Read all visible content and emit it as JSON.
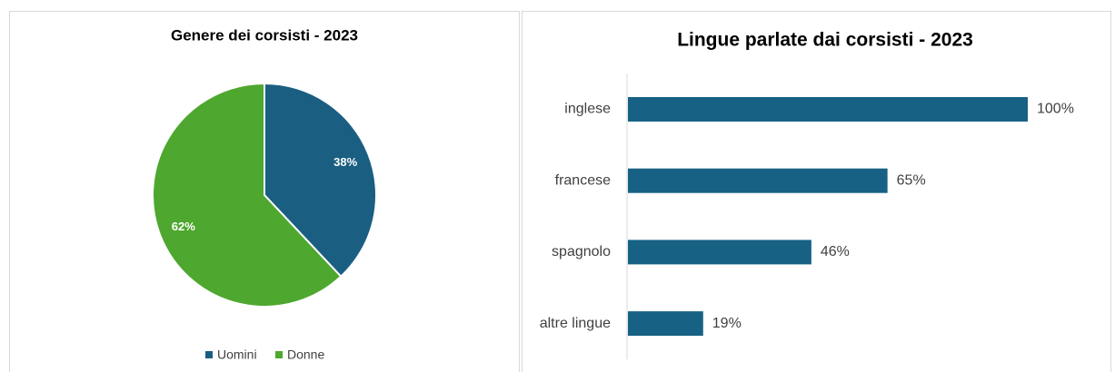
{
  "chart_data": [
    {
      "type": "pie",
      "title": "Genere dei corsisti - 2023",
      "categories": [
        "Uomini",
        "Donne"
      ],
      "values": [
        38,
        62
      ],
      "value_labels": [
        "38%",
        "62%"
      ],
      "colors": [
        "#1a5e82",
        "#4ea72e"
      ],
      "legend": "bottom"
    },
    {
      "type": "barh",
      "title": "Lingue parlate dai corsisti - 2023",
      "categories": [
        "inglese",
        "francese",
        "spagnolo",
        "altre lingue"
      ],
      "values": [
        100,
        65,
        46,
        19
      ],
      "value_labels": [
        "100%",
        "65%",
        "46%",
        "19%"
      ],
      "color": "#176185",
      "xlim": [
        0,
        100
      ]
    }
  ]
}
